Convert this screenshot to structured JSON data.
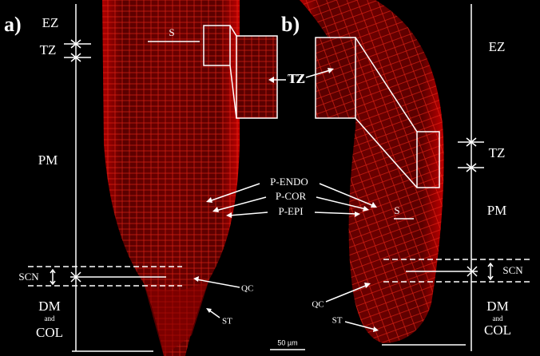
{
  "panels": [
    {
      "label": "a)",
      "zones": {
        "ez": "EZ",
        "tz": "TZ",
        "pm": "PM",
        "scn": "SCN",
        "dm": "DM",
        "and": "and",
        "col": "COL"
      },
      "structure": "S",
      "inset_label": "TZ",
      "qc": "QC",
      "st": "ST"
    },
    {
      "label": "b)",
      "zones": {
        "ez": "EZ",
        "tz": "TZ",
        "pm": "PM",
        "scn": "SCN",
        "dm": "DM",
        "and": "and",
        "col": "COL"
      },
      "structure": "S",
      "inset_label": "TZ",
      "qc": "QC",
      "st": "ST"
    }
  ],
  "layers": [
    "P-ENDO",
    "P-COR",
    "P-EPI"
  ],
  "scale_bar": "50 µm"
}
